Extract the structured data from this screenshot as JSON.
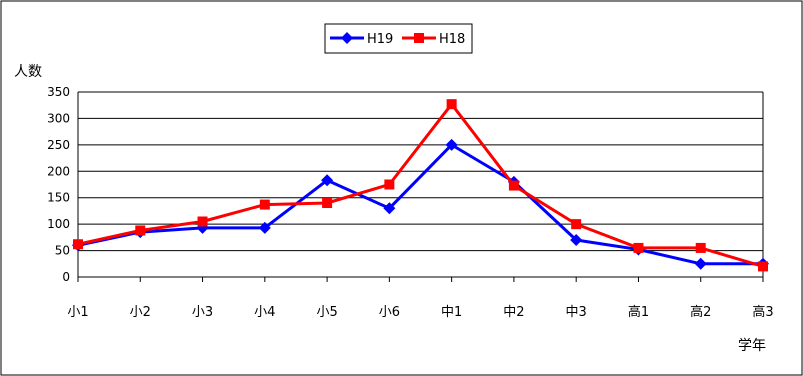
{
  "chart_data": {
    "type": "line",
    "title": "",
    "xlabel": "学年",
    "ylabel": "人数",
    "ylim": [
      0,
      350
    ],
    "yticks": [
      "0",
      "50",
      "100",
      "150",
      "200",
      "250",
      "300",
      "350"
    ],
    "grid": true,
    "legend_position": "top-center",
    "categories": [
      "小1",
      "小2",
      "小3",
      "小4",
      "小5",
      "小6",
      "中1",
      "中2",
      "中3",
      "高1",
      "高2",
      "高3"
    ],
    "series": [
      {
        "name": "H19",
        "color": "#0000ff",
        "marker": "diamond",
        "values": [
          60,
          85,
          93,
          93,
          183,
          130,
          250,
          180,
          70,
          52,
          25,
          25
        ]
      },
      {
        "name": "H18",
        "color": "#ff0000",
        "marker": "square",
        "values": [
          62,
          88,
          105,
          137,
          140,
          175,
          327,
          173,
          100,
          55,
          55,
          20
        ]
      }
    ]
  }
}
